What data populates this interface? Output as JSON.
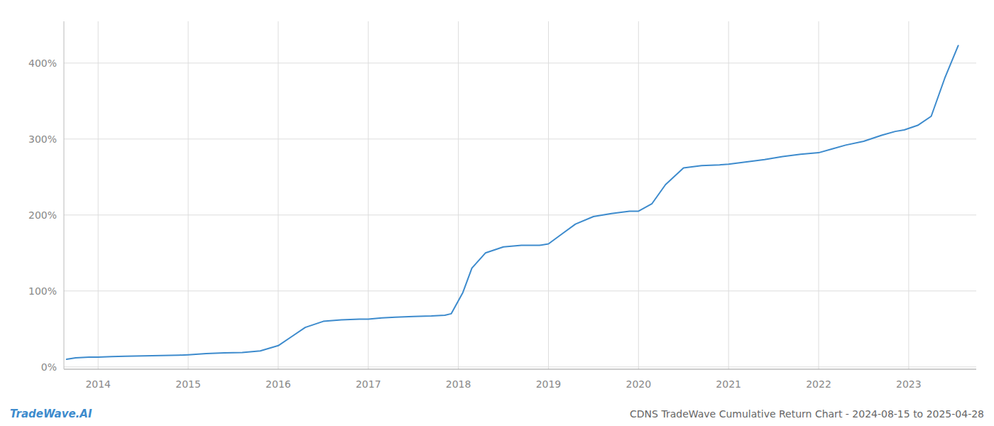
{
  "chart_data": {
    "type": "line",
    "title": "CDNS TradeWave Cumulative Return Chart - 2024-08-15 to 2025-04-28",
    "annotations": [
      "TradeWave.AI"
    ],
    "color": "#3d8bcd",
    "grid": true,
    "xlim": [
      2013.62,
      2023.75
    ],
    "ylim": [
      -0.03,
      4.55
    ],
    "xticks": [
      2014,
      2015,
      2016,
      2017,
      2018,
      2019,
      2020,
      2021,
      2022,
      2023
    ],
    "yticks": [
      {
        "value": 0.0,
        "label": "0%"
      },
      {
        "value": 1.0,
        "label": "100%"
      },
      {
        "value": 2.0,
        "label": "200%"
      },
      {
        "value": 3.0,
        "label": "300%"
      },
      {
        "value": 4.0,
        "label": "400%"
      }
    ],
    "x": [
      2013.65,
      2013.75,
      2013.9,
      2014.0,
      2014.15,
      2014.3,
      2014.5,
      2014.7,
      2014.9,
      2015.0,
      2015.2,
      2015.4,
      2015.6,
      2015.8,
      2016.0,
      2016.15,
      2016.3,
      2016.5,
      2016.7,
      2016.9,
      2017.0,
      2017.15,
      2017.3,
      2017.5,
      2017.7,
      2017.85,
      2017.92,
      2018.05,
      2018.15,
      2018.3,
      2018.5,
      2018.7,
      2018.9,
      2019.0,
      2019.15,
      2019.3,
      2019.5,
      2019.7,
      2019.9,
      2020.0,
      2020.15,
      2020.3,
      2020.5,
      2020.7,
      2020.9,
      2021.0,
      2021.2,
      2021.4,
      2021.6,
      2021.8,
      2022.0,
      2022.15,
      2022.3,
      2022.5,
      2022.7,
      2022.85,
      2022.95,
      2023.1,
      2023.25,
      2023.4,
      2023.55
    ],
    "values": [
      0.1,
      0.12,
      0.13,
      0.13,
      0.135,
      0.14,
      0.145,
      0.15,
      0.155,
      0.16,
      0.175,
      0.185,
      0.19,
      0.21,
      0.28,
      0.4,
      0.52,
      0.6,
      0.62,
      0.63,
      0.63,
      0.645,
      0.655,
      0.665,
      0.67,
      0.68,
      0.7,
      0.98,
      1.3,
      1.5,
      1.58,
      1.6,
      1.6,
      1.62,
      1.75,
      1.88,
      1.98,
      2.02,
      2.05,
      2.05,
      2.15,
      2.4,
      2.62,
      2.65,
      2.66,
      2.67,
      2.7,
      2.73,
      2.77,
      2.8,
      2.82,
      2.87,
      2.92,
      2.97,
      3.05,
      3.1,
      3.12,
      3.18,
      3.3,
      3.8,
      4.23
    ]
  }
}
